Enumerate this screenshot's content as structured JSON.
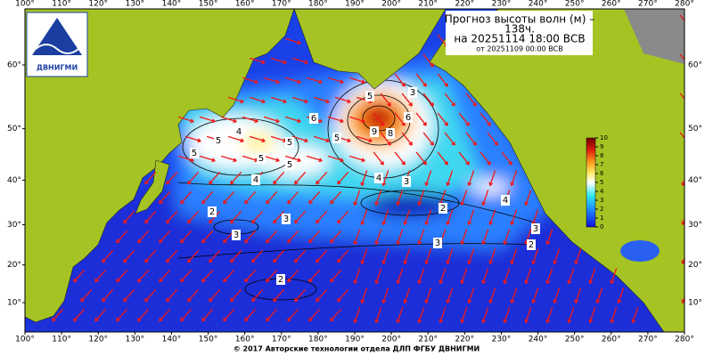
{
  "logo": {
    "label": "ДВНИГМИ"
  },
  "title": {
    "lines": [
      "Прогноз высоты волн (м) –",
      "138ч.",
      "на 20251114 18:00 ВСВ",
      "от 20251109 00:00 ВСВ"
    ]
  },
  "map": {
    "lon_ticks": [
      {
        "value": 100,
        "label": "100°"
      },
      {
        "value": 110,
        "label": "110°"
      },
      {
        "value": 120,
        "label": "120°"
      },
      {
        "value": 130,
        "label": "130°"
      },
      {
        "value": 140,
        "label": "140°"
      },
      {
        "value": 150,
        "label": "150°"
      },
      {
        "value": 160,
        "label": "160°"
      },
      {
        "value": 170,
        "label": "170°"
      },
      {
        "value": 180,
        "label": "180°"
      },
      {
        "value": 190,
        "label": "190°"
      },
      {
        "value": 200,
        "label": "200°"
      },
      {
        "value": 210,
        "label": "210°"
      },
      {
        "value": 220,
        "label": "220°"
      },
      {
        "value": 230,
        "label": "230°"
      },
      {
        "value": 240,
        "label": "240°"
      },
      {
        "value": 250,
        "label": "250°"
      },
      {
        "value": 260,
        "label": "260°"
      },
      {
        "value": 270,
        "label": "270°"
      },
      {
        "value": 280,
        "label": "280°"
      }
    ],
    "lat_ticks": [
      {
        "value": 10,
        "label": "10°"
      },
      {
        "value": 20,
        "label": "20°"
      },
      {
        "value": 30,
        "label": "30°"
      },
      {
        "value": 40,
        "label": "40°"
      },
      {
        "value": 50,
        "label": "50°"
      },
      {
        "value": 60,
        "label": "60°"
      }
    ],
    "contour_labels": [
      4,
      5,
      5,
      5,
      5,
      6,
      5,
      4,
      2,
      3,
      3,
      2,
      5,
      3,
      6,
      9,
      8,
      5,
      4,
      3,
      2,
      3,
      4,
      3,
      2
    ]
  },
  "colorbar": {
    "ticks": [
      10,
      9,
      8,
      7,
      6,
      5,
      4,
      3,
      2,
      1,
      0
    ]
  },
  "footer": "© 2017 Авторские технологии отдела ДЛП ФГБУ ДВНИГМИ"
}
